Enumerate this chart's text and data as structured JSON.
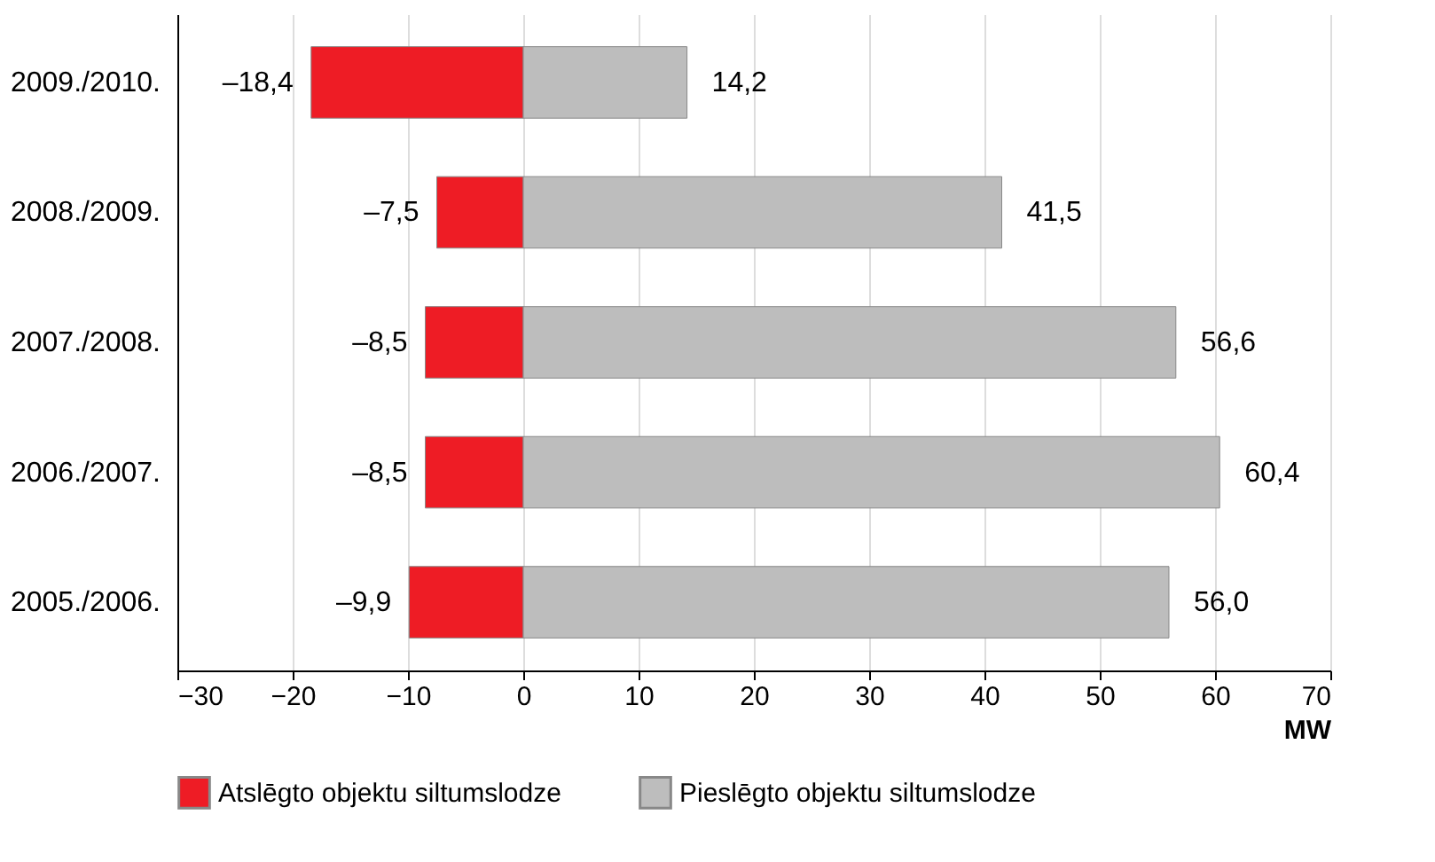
{
  "chart_data": {
    "type": "bar",
    "orientation": "horizontal",
    "stacked": true,
    "categories": [
      "2009./2010.",
      "2008./2009.",
      "2007./2008.",
      "2006./2007.",
      "2005./2006."
    ],
    "series": [
      {
        "name": "Atslēgto objektu siltumslodze",
        "color": "#ee1c25",
        "values": [
          -18.4,
          -7.5,
          -8.5,
          -8.5,
          -9.9
        ],
        "value_labels": [
          "–18,4",
          "–7,5",
          "–8,5",
          "–8,5",
          "–9,9"
        ]
      },
      {
        "name": "Pieslēgto objektu siltumslodze",
        "color": "#bdbdbd",
        "values": [
          14.2,
          41.5,
          56.6,
          60.4,
          56.0
        ],
        "value_labels": [
          "14,2",
          "41,5",
          "56,6",
          "60,4",
          "56,0"
        ]
      }
    ],
    "xlim": [
      -30,
      70
    ],
    "xticks": [
      -30,
      -20,
      -10,
      0,
      10,
      20,
      30,
      40,
      50,
      60,
      70
    ],
    "xlabel": "MW",
    "grid": "x",
    "legend": "bottom"
  }
}
